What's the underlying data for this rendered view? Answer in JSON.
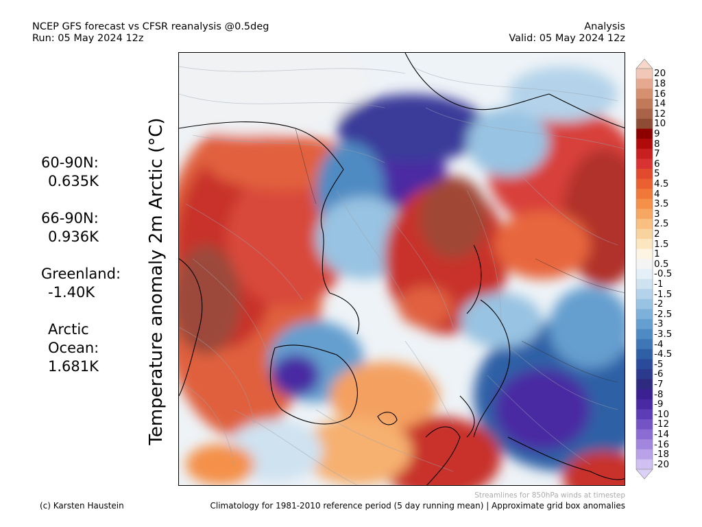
{
  "header": {
    "title_line1": "NCEP GFS forecast vs CFSR reanalysis @0.5deg",
    "title_line2": "Run: 05 May 2024 12z",
    "right_line1": "Analysis",
    "right_line2": "Valid: 05 May 2024 12z"
  },
  "vertical_title": "Temperature anomaly 2m Arctic (°C)",
  "stats": [
    {
      "label": "60-90N:",
      "value": "0.635K"
    },
    {
      "label": "66-90N:",
      "value": "0.936K"
    },
    {
      "label": "Greenland:",
      "value": "-1.40K"
    },
    {
      "label": "Arctic Ocean:",
      "value": "1.681K"
    }
  ],
  "colorbar": {
    "labels": [
      "20",
      "18",
      "16",
      "14",
      "12",
      "10",
      "9",
      "8",
      "7",
      "6",
      "5",
      "4.5",
      "4",
      "3.5",
      "3",
      "2.5",
      "2",
      "1.5",
      "1",
      "0.5",
      "-0.5",
      "-1",
      "-1.5",
      "-2",
      "-2.5",
      "-3",
      "-3.5",
      "-4",
      "-4.5",
      "-5",
      "-6",
      "-7",
      "-8",
      "-9",
      "-10",
      "-12",
      "-14",
      "-16",
      "-18",
      "-20"
    ],
    "colors": [
      "#f1c8b8",
      "#e4a98f",
      "#d4906f",
      "#c07a5a",
      "#a86348",
      "#8f4c35",
      "#8c0000",
      "#b00a0a",
      "#c82020",
      "#d83232",
      "#e24a2e",
      "#ea6030",
      "#f07838",
      "#f49048",
      "#f6a862",
      "#f8bf80",
      "#f9d39d",
      "#fbe6c0",
      "#fdf4e3",
      "#f4f4f4",
      "#e4eff7",
      "#cfe2f0",
      "#b4d3ea",
      "#98c3e2",
      "#7db1d9",
      "#659fcf",
      "#4f8bc3",
      "#3e76b6",
      "#2f60a6",
      "#2a4a9a",
      "#2b3a8c",
      "#2e2a80",
      "#3a2090",
      "#4a2aa3",
      "#5d3db5",
      "#7453c5",
      "#8a6cd3",
      "#a286de",
      "#baa2e8",
      "#d0c0f1"
    ],
    "upper_arrow_color": "#f7d8c8",
    "lower_arrow_color": "#ddd0f6"
  },
  "footer": {
    "streamline_note": "Streamlines for 850hPa winds at timestep",
    "credit": "(c) Karsten Haustein",
    "climatology_note": "Climatology for 1981-2010 reference period (5 day running mean) | Approximate grid box anomalies"
  }
}
